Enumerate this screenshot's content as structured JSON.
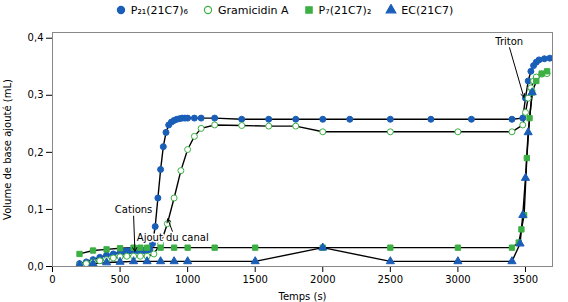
{
  "chart_data": {
    "type": "line",
    "xlabel": "Temps (s)",
    "ylabel": "Volume de base ajouté (mL)",
    "xlim": [
      0,
      3700
    ],
    "ylim": [
      0.0,
      0.41
    ],
    "xticks": [
      0,
      500,
      1000,
      1500,
      2000,
      2500,
      3000,
      3500
    ],
    "yticks": [
      {
        "value": 0.0,
        "label": "0,0"
      },
      {
        "value": 0.1,
        "label": "0,1"
      },
      {
        "value": 0.2,
        "label": "0,2"
      },
      {
        "value": 0.3,
        "label": "0,3"
      },
      {
        "value": 0.4,
        "label": "0,4"
      }
    ],
    "color": "black",
    "legend": "top",
    "series": [
      {
        "name": "P₂₁(21C7)₆",
        "color": "#1a5eb8",
        "marker": "circle",
        "x": [
          200,
          250,
          300,
          350,
          400,
          450,
          500,
          520,
          540,
          560,
          580,
          600,
          620,
          640,
          660,
          680,
          700,
          720,
          740,
          760,
          780,
          800,
          820,
          840,
          860,
          880,
          900,
          920,
          940,
          960,
          980,
          1000,
          1050,
          1100,
          1200,
          1400,
          1600,
          1800,
          2000,
          2200,
          2500,
          2800,
          3100,
          3400,
          3480,
          3500,
          3520,
          3540,
          3560,
          3580,
          3600,
          3640,
          3680
        ],
        "values": [
          0.005,
          0.008,
          0.012,
          0.016,
          0.02,
          0.022,
          0.025,
          0.026,
          0.027,
          0.027,
          0.028,
          0.028,
          0.028,
          0.028,
          0.028,
          0.028,
          0.028,
          0.03,
          0.04,
          0.07,
          0.12,
          0.17,
          0.21,
          0.235,
          0.248,
          0.253,
          0.256,
          0.258,
          0.259,
          0.26,
          0.26,
          0.26,
          0.26,
          0.26,
          0.26,
          0.258,
          0.258,
          0.258,
          0.258,
          0.258,
          0.258,
          0.258,
          0.258,
          0.258,
          0.26,
          0.295,
          0.325,
          0.342,
          0.352,
          0.358,
          0.362,
          0.364,
          0.365
        ]
      },
      {
        "name": "Gramicidin A",
        "color": "#3cb043",
        "marker": "open_circle",
        "x": [
          200,
          250,
          300,
          350,
          400,
          450,
          500,
          550,
          600,
          650,
          700,
          750,
          800,
          850,
          900,
          950,
          1000,
          1050,
          1100,
          1200,
          1400,
          1600,
          1800,
          2000,
          2500,
          3000,
          3400,
          3480,
          3500,
          3520,
          3540,
          3560,
          3580,
          3620,
          3660
        ],
        "values": [
          0.003,
          0.005,
          0.008,
          0.01,
          0.012,
          0.015,
          0.017,
          0.018,
          0.018,
          0.018,
          0.018,
          0.022,
          0.04,
          0.075,
          0.12,
          0.168,
          0.205,
          0.228,
          0.242,
          0.248,
          0.247,
          0.246,
          0.246,
          0.236,
          0.236,
          0.236,
          0.236,
          0.248,
          0.27,
          0.295,
          0.313,
          0.325,
          0.332,
          0.337,
          0.338
        ]
      },
      {
        "name": "P₇(21C7)₂",
        "color": "#3cb043",
        "marker": "square",
        "x": [
          200,
          300,
          400,
          500,
          600,
          650,
          700,
          800,
          900,
          1000,
          1200,
          1500,
          2000,
          2500,
          3000,
          3400,
          3450,
          3470,
          3490,
          3510,
          3530,
          3550,
          3580,
          3620,
          3660
        ],
        "values": [
          0.022,
          0.028,
          0.03,
          0.032,
          0.033,
          0.033,
          0.033,
          0.033,
          0.033,
          0.033,
          0.033,
          0.033,
          0.033,
          0.033,
          0.033,
          0.033,
          0.042,
          0.065,
          0.09,
          0.19,
          0.26,
          0.305,
          0.325,
          0.338,
          0.342
        ]
      },
      {
        "name": "EC(21C7)",
        "color": "#1a5eb8",
        "marker": "triangle",
        "x": [
          200,
          300,
          400,
          500,
          600,
          700,
          800,
          900,
          1000,
          1500,
          2000,
          2500,
          3000,
          3400,
          3460,
          3480,
          3500,
          3520,
          3550
        ],
        "values": [
          0.003,
          0.005,
          0.007,
          0.008,
          0.009,
          0.009,
          0.009,
          0.009,
          0.009,
          0.009,
          0.033,
          0.009,
          0.009,
          0.009,
          0.04,
          0.09,
          0.155,
          0.235,
          0.305
        ]
      }
    ],
    "annotations": [
      {
        "text": "Cations",
        "x": 610,
        "y": 0.025,
        "text_x": 600,
        "text_y": 0.09
      },
      {
        "text": "Ajout du canal",
        "x": 850,
        "y": 0.085,
        "text_x": 890,
        "text_y": 0.06
      },
      {
        "text": "Triton",
        "x": 3490,
        "y": 0.295,
        "text_x": 3380,
        "text_y": 0.385
      }
    ]
  }
}
